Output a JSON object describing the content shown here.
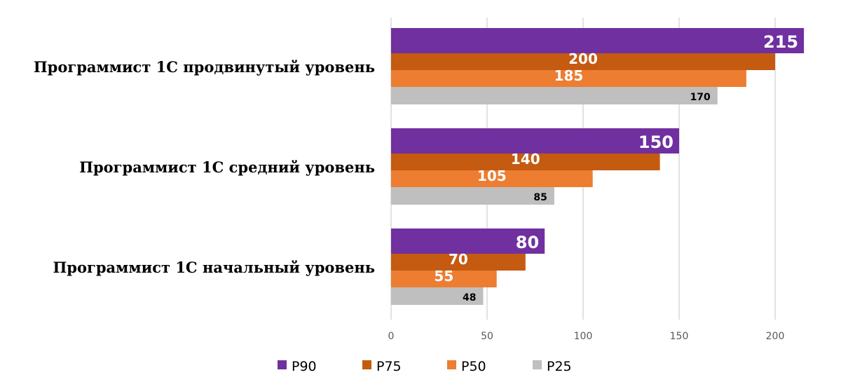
{
  "chart_data": {
    "type": "bar",
    "orientation": "horizontal",
    "categories": [
      "Программист 1С продвинутый уровень",
      "Программист 1С средний уровень",
      "Программист 1С начальный уровень"
    ],
    "series": [
      {
        "name": "P90",
        "color": "#7030A0",
        "values": [
          215,
          150,
          80
        ]
      },
      {
        "name": "P75",
        "color": "#C55A11",
        "values": [
          200,
          140,
          70
        ]
      },
      {
        "name": "P50",
        "color": "#ED7D31",
        "values": [
          185,
          105,
          55
        ]
      },
      {
        "name": "P25",
        "color": "#BFBFBF",
        "values": [
          170,
          85,
          48
        ]
      }
    ],
    "xlim": [
      0,
      215
    ],
    "xticks": [
      "0",
      "50",
      "100",
      "150",
      "200"
    ],
    "grid": true,
    "legend": "bottom",
    "data_labels": true
  }
}
